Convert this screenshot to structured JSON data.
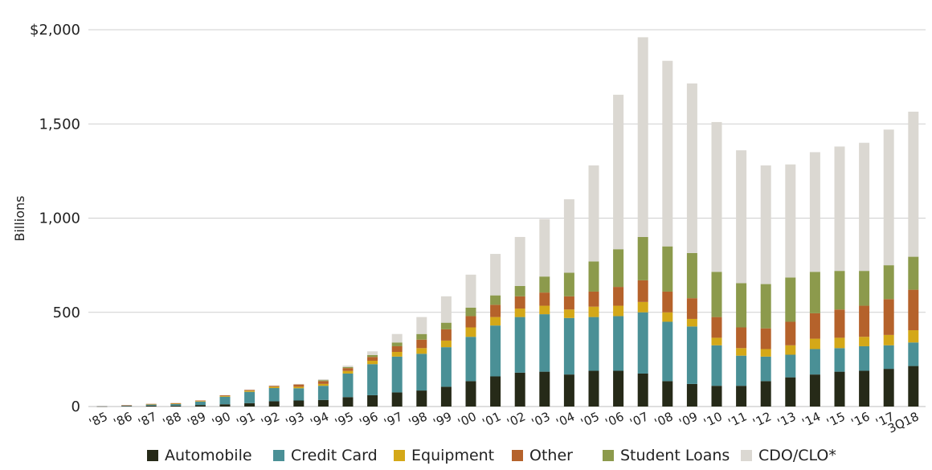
{
  "chart_data": {
    "type": "bar",
    "stacked": true,
    "ylabel": "Billions",
    "ylim": [
      0,
      2000
    ],
    "y_ticks": [
      "0",
      "500",
      "1,000",
      "1,500",
      "$2,000"
    ],
    "y_tick_values": [
      0,
      500,
      1000,
      1500,
      2000
    ],
    "grid": "horizontal",
    "legend_position": "bottom",
    "categories": [
      "'85",
      "'86",
      "'87",
      "'88",
      "'89",
      "'90",
      "'91",
      "'92",
      "'93",
      "'94",
      "'95",
      "'96",
      "'97",
      "'98",
      "'99",
      "'00",
      "'01",
      "'02",
      "'03",
      "'04",
      "'05",
      "'06",
      "'07",
      "'08",
      "'09",
      "'10",
      "'11",
      "'12",
      "'13",
      "'14",
      "'15",
      "'16",
      "'17",
      "3Q18"
    ],
    "series": [
      {
        "name": "Automobile",
        "color": "#262a18",
        "values": [
          1,
          3,
          5,
          5,
          8,
          12,
          18,
          28,
          32,
          35,
          50,
          60,
          75,
          85,
          105,
          135,
          160,
          180,
          185,
          170,
          190,
          190,
          175,
          135,
          120,
          110,
          110,
          135,
          155,
          170,
          185,
          190,
          200,
          215
        ]
      },
      {
        "name": "Credit Card",
        "color": "#4a9096",
        "values": [
          0,
          3,
          6,
          8,
          18,
          40,
          60,
          70,
          65,
          75,
          125,
          165,
          190,
          195,
          210,
          235,
          270,
          295,
          305,
          300,
          285,
          290,
          325,
          315,
          305,
          215,
          160,
          130,
          120,
          135,
          125,
          130,
          125,
          125
        ]
      },
      {
        "name": "Equipment",
        "color": "#d4a818",
        "values": [
          0,
          0,
          1,
          2,
          3,
          4,
          6,
          7,
          8,
          10,
          14,
          18,
          25,
          30,
          35,
          50,
          45,
          45,
          45,
          45,
          55,
          55,
          55,
          50,
          40,
          40,
          40,
          40,
          50,
          55,
          55,
          50,
          55,
          65
        ]
      },
      {
        "name": "Other",
        "color": "#b5622b",
        "values": [
          0,
          1,
          2,
          3,
          3,
          4,
          5,
          5,
          12,
          15,
          15,
          20,
          30,
          45,
          60,
          60,
          65,
          65,
          70,
          70,
          80,
          100,
          115,
          110,
          110,
          110,
          110,
          110,
          125,
          135,
          150,
          165,
          190,
          215
        ]
      },
      {
        "name": "Student Loans",
        "color": "#8c9a4c",
        "values": [
          0,
          0,
          0,
          0,
          0,
          0,
          0,
          0,
          0,
          5,
          5,
          10,
          20,
          30,
          35,
          45,
          50,
          55,
          85,
          125,
          160,
          200,
          230,
          240,
          240,
          240,
          235,
          235,
          235,
          220,
          205,
          185,
          180,
          175
        ]
      },
      {
        "name": "CDO/CLO*",
        "color": "#dbd8d2",
        "values": [
          0,
          0,
          0,
          0,
          0,
          0,
          1,
          2,
          3,
          5,
          8,
          20,
          45,
          90,
          140,
          175,
          220,
          260,
          305,
          390,
          510,
          820,
          1060,
          985,
          900,
          795,
          705,
          630,
          600,
          635,
          660,
          680,
          720,
          770
        ]
      }
    ]
  }
}
